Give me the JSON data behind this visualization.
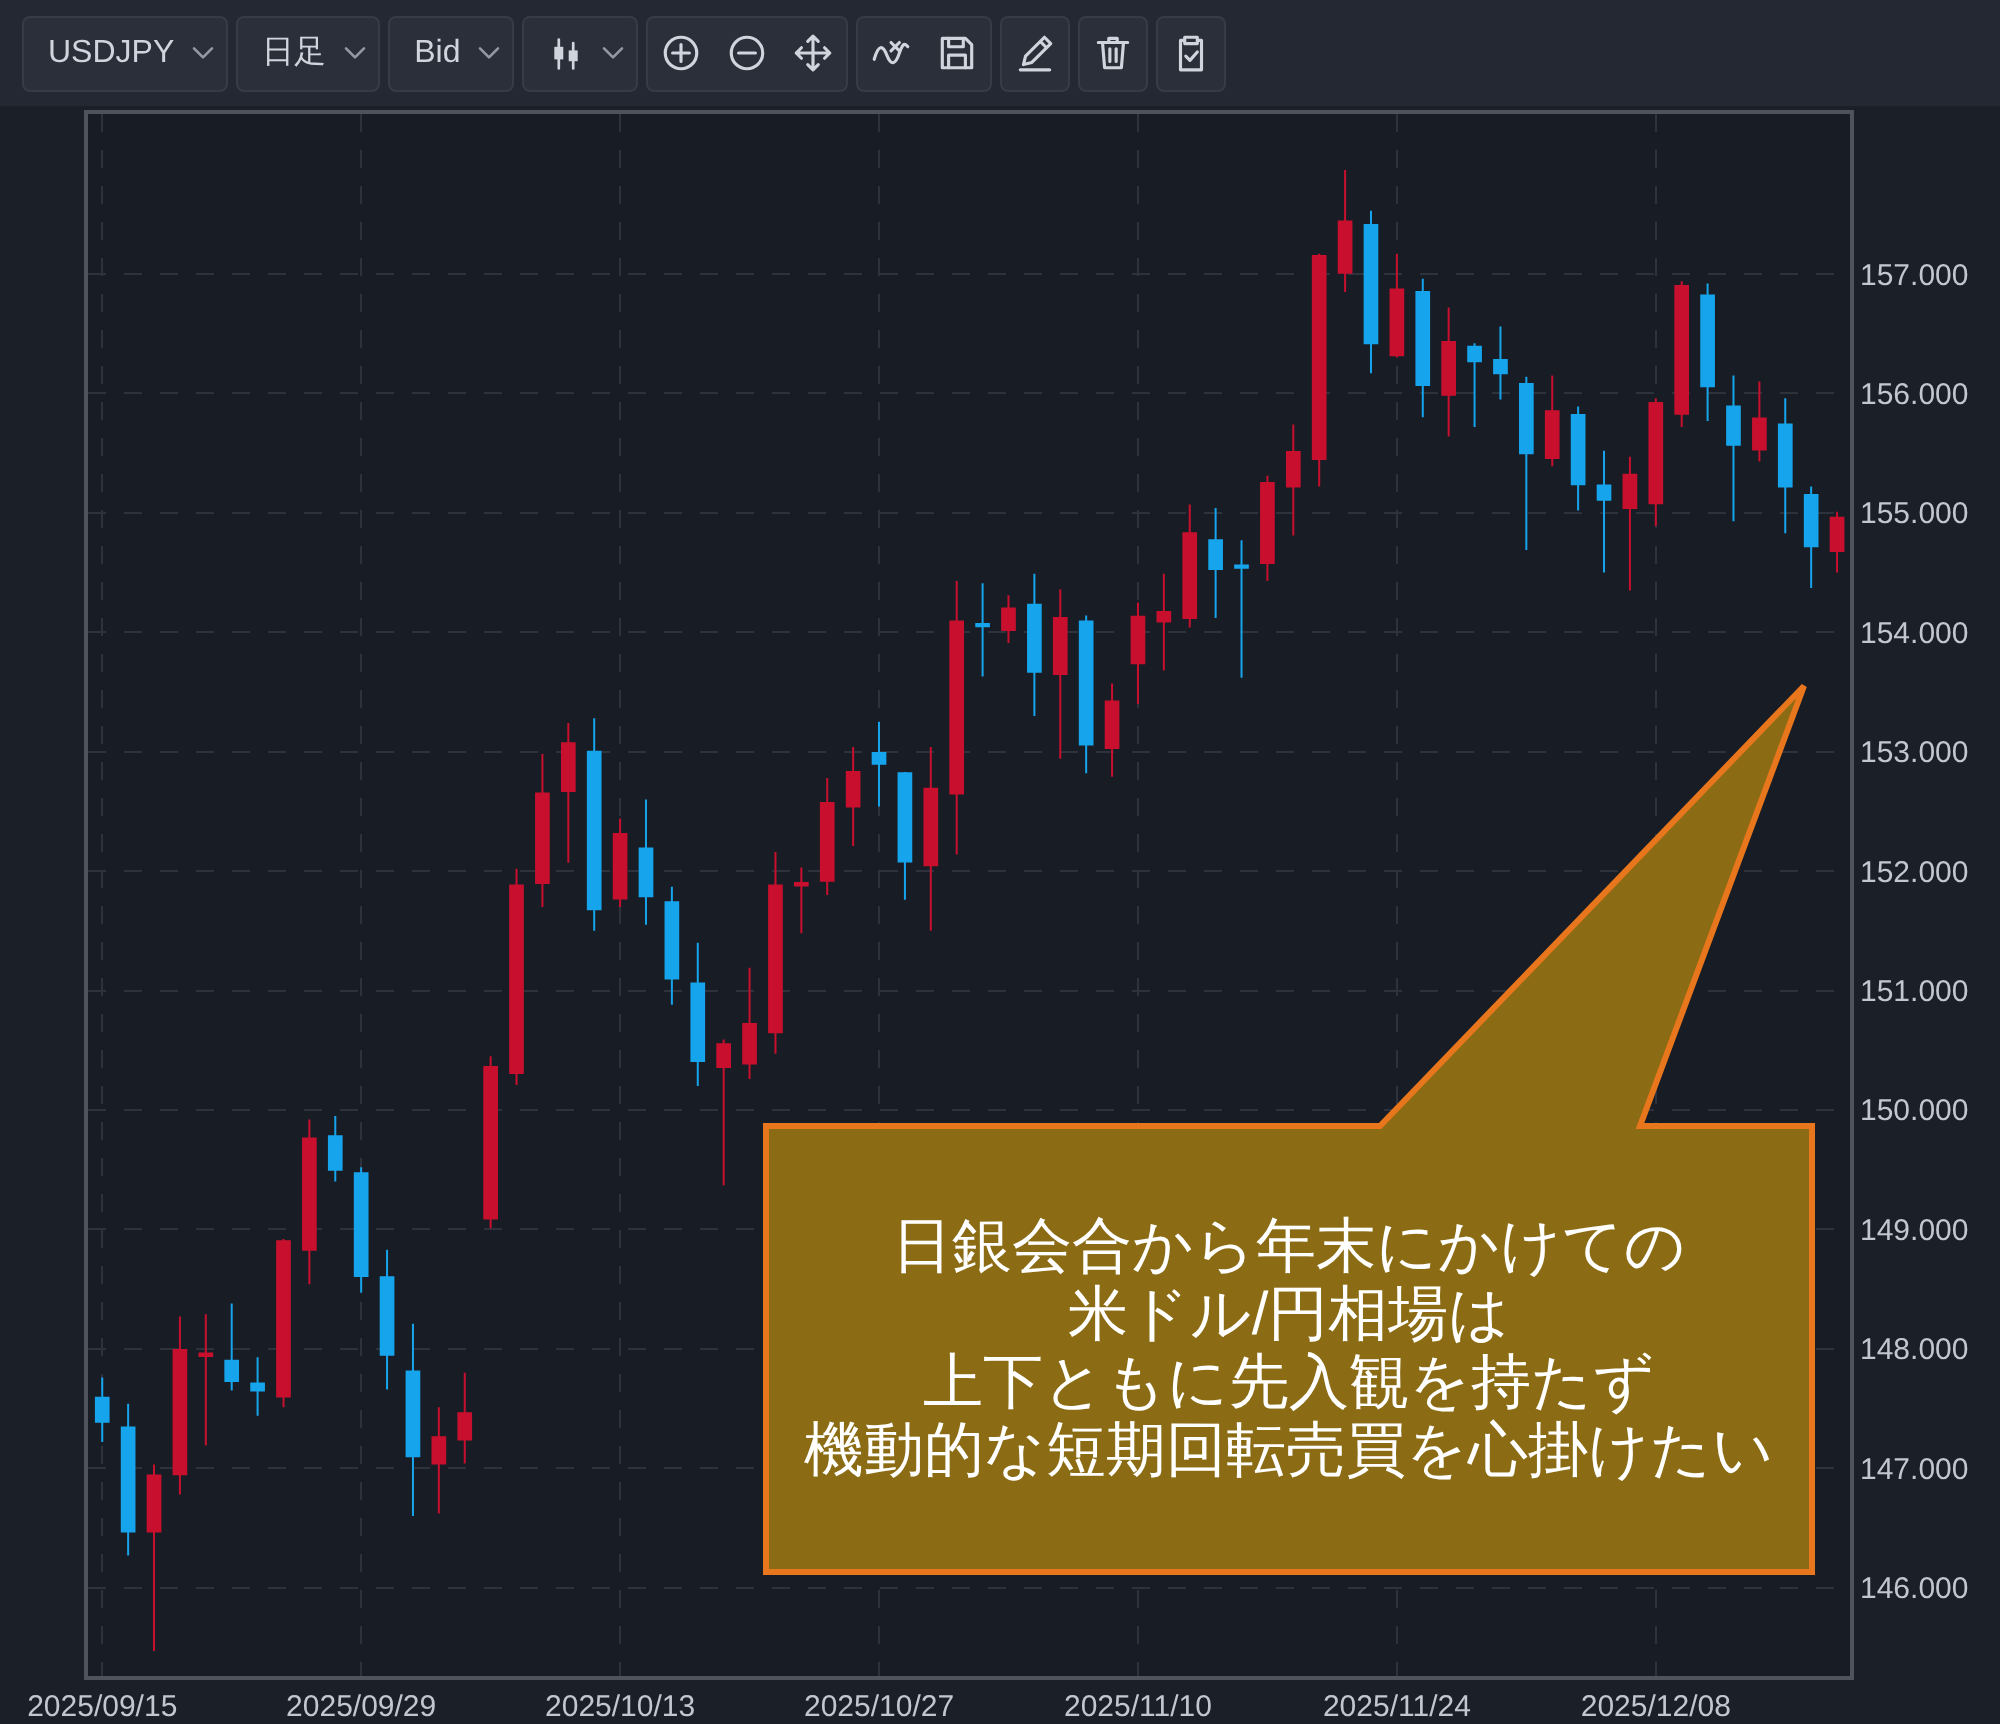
{
  "chart_data": {
    "type": "candlestick",
    "title": "USDJPY",
    "annotations": [
      "日足",
      "Bid",
      "日銀会合から年末にかけての米ドル/円相場は上下ともに先入観を持たず機動的な短期回転売買を心掛けたい"
    ],
    "categories": [
      "2025/09/15",
      null,
      null,
      null,
      null,
      null,
      null,
      null,
      null,
      null,
      "2025/09/29",
      null,
      null,
      null,
      null,
      null,
      null,
      null,
      null,
      null,
      "2025/10/13",
      null,
      null,
      null,
      null,
      null,
      null,
      null,
      null,
      null,
      "2025/10/27",
      null,
      null,
      null,
      null,
      null,
      null,
      null,
      null,
      null,
      "2025/11/10",
      null,
      null,
      null,
      null,
      null,
      null,
      null,
      null,
      null,
      "2025/11/24",
      null,
      null,
      null,
      null,
      null,
      null,
      null,
      null,
      null,
      "2025/12/08",
      null,
      null,
      null,
      null,
      null,
      null,
      null
    ],
    "ohlc": [
      [
        147.59,
        147.76,
        147.22,
        147.39
      ],
      [
        147.34,
        147.54,
        146.27,
        146.47
      ],
      [
        146.47,
        147.03,
        145.47,
        146.94
      ],
      [
        146.95,
        148.27,
        146.78,
        147.99
      ],
      [
        147.94,
        148.29,
        147.19,
        147.96
      ],
      [
        147.9,
        148.38,
        147.65,
        147.73
      ],
      [
        147.71,
        147.93,
        147.44,
        147.65
      ],
      [
        147.6,
        148.92,
        147.51,
        148.9
      ],
      [
        148.83,
        149.92,
        148.54,
        149.76
      ],
      [
        149.78,
        149.95,
        149.4,
        149.5
      ],
      [
        149.47,
        149.52,
        148.47,
        148.61
      ],
      [
        148.6,
        148.83,
        147.66,
        147.95
      ],
      [
        147.81,
        148.21,
        146.6,
        147.1
      ],
      [
        147.04,
        147.51,
        146.62,
        147.26
      ],
      [
        147.24,
        147.8,
        147.04,
        147.46
      ],
      [
        149.09,
        150.45,
        149.01,
        150.36
      ],
      [
        150.31,
        152.02,
        150.21,
        151.88
      ],
      [
        151.9,
        152.98,
        151.7,
        152.65
      ],
      [
        152.67,
        153.24,
        152.07,
        153.07
      ],
      [
        153.0,
        153.28,
        151.5,
        151.68
      ],
      [
        151.77,
        152.44,
        151.7,
        152.31
      ],
      [
        152.19,
        152.6,
        151.55,
        151.79
      ],
      [
        151.74,
        151.87,
        150.88,
        151.1
      ],
      [
        151.06,
        151.4,
        150.2,
        150.41
      ],
      [
        150.36,
        150.59,
        149.37,
        150.55
      ],
      [
        150.39,
        151.19,
        150.26,
        150.72
      ],
      [
        150.65,
        152.16,
        150.47,
        151.88
      ],
      [
        151.88,
        152.03,
        151.48,
        151.9
      ],
      [
        151.92,
        152.78,
        151.8,
        152.57
      ],
      [
        152.54,
        153.04,
        152.21,
        152.83
      ],
      [
        152.99,
        153.25,
        152.54,
        152.9
      ],
      [
        152.82,
        152.83,
        151.76,
        152.08
      ],
      [
        152.05,
        153.04,
        151.5,
        152.69
      ],
      [
        152.65,
        154.43,
        152.14,
        154.09
      ],
      [
        154.07,
        154.41,
        153.63,
        154.05
      ],
      [
        154.02,
        154.31,
        153.91,
        154.2
      ],
      [
        154.23,
        154.49,
        153.3,
        153.67
      ],
      [
        153.65,
        154.36,
        152.94,
        154.12
      ],
      [
        154.09,
        154.14,
        152.82,
        153.06
      ],
      [
        153.03,
        153.57,
        152.79,
        153.42
      ],
      [
        153.74,
        154.25,
        153.4,
        154.13
      ],
      [
        154.09,
        154.49,
        153.68,
        154.17
      ],
      [
        154.12,
        155.07,
        154.04,
        154.83
      ],
      [
        154.77,
        155.04,
        154.12,
        154.53
      ],
      [
        154.56,
        154.77,
        153.62,
        154.54
      ],
      [
        154.58,
        155.31,
        154.43,
        155.25
      ],
      [
        155.22,
        155.74,
        154.81,
        155.51
      ],
      [
        155.45,
        157.17,
        155.22,
        157.15
      ],
      [
        157.01,
        157.87,
        156.85,
        157.44
      ],
      [
        157.41,
        157.53,
        156.17,
        156.42
      ],
      [
        156.32,
        157.17,
        156.3,
        156.87
      ],
      [
        156.85,
        156.96,
        155.8,
        156.07
      ],
      [
        155.99,
        156.72,
        155.64,
        156.43
      ],
      [
        156.39,
        156.42,
        155.72,
        156.27
      ],
      [
        156.28,
        156.56,
        155.95,
        156.17
      ],
      [
        156.08,
        156.14,
        154.69,
        155.5
      ],
      [
        155.46,
        156.15,
        155.39,
        155.85
      ],
      [
        155.82,
        155.89,
        155.02,
        155.24
      ],
      [
        155.23,
        155.52,
        154.5,
        155.11
      ],
      [
        155.04,
        155.47,
        154.35,
        155.32
      ],
      [
        155.08,
        155.96,
        154.89,
        155.92
      ],
      [
        155.83,
        156.94,
        155.72,
        156.9
      ],
      [
        156.82,
        156.92,
        155.77,
        156.06
      ],
      [
        155.89,
        156.15,
        154.93,
        155.57
      ],
      [
        155.53,
        156.1,
        155.43,
        155.79
      ],
      [
        155.74,
        155.96,
        154.83,
        155.22
      ],
      [
        155.15,
        155.22,
        154.37,
        154.72
      ],
      [
        154.68,
        155.01,
        154.5,
        154.96
      ]
    ],
    "colors": [
      "#16a5ec",
      "#16a5ec",
      "#c8102e",
      "#c8102e",
      "#c8102e",
      "#16a5ec",
      "#16a5ec",
      "#c8102e",
      "#c8102e",
      "#16a5ec",
      "#16a5ec",
      "#16a5ec",
      "#16a5ec",
      "#c8102e",
      "#c8102e",
      "#c8102e",
      "#c8102e",
      "#c8102e",
      "#c8102e",
      "#16a5ec",
      "#c8102e",
      "#16a5ec",
      "#16a5ec",
      "#16a5ec",
      "#c8102e",
      "#c8102e",
      "#c8102e",
      "#c8102e",
      "#c8102e",
      "#c8102e",
      "#16a5ec",
      "#16a5ec",
      "#c8102e",
      "#c8102e",
      "#16a5ec",
      "#c8102e",
      "#16a5ec",
      "#c8102e",
      "#16a5ec",
      "#c8102e",
      "#c8102e",
      "#c8102e",
      "#c8102e",
      "#16a5ec",
      "#16a5ec",
      "#c8102e",
      "#c8102e",
      "#c8102e",
      "#c8102e",
      "#16a5ec",
      "#c8102e",
      "#16a5ec",
      "#c8102e",
      "#16a5ec",
      "#16a5ec",
      "#16a5ec",
      "#c8102e",
      "#16a5ec",
      "#16a5ec",
      "#c8102e",
      "#c8102e",
      "#c8102e",
      "#16a5ec",
      "#16a5ec",
      "#c8102e",
      "#16a5ec",
      "#16a5ec",
      "#c8102e"
    ],
    "ylim": [
      145.26,
      158.34
    ],
    "yticks": [
      {
        "value": 146,
        "label": "146.000"
      },
      {
        "value": 147,
        "label": "147.000"
      },
      {
        "value": 148,
        "label": "148.000"
      },
      {
        "value": 149,
        "label": "149.000"
      },
      {
        "value": 150,
        "label": "150.000"
      },
      {
        "value": 151,
        "label": "151.000"
      },
      {
        "value": 152,
        "label": "152.000"
      },
      {
        "value": 153,
        "label": "153.000"
      },
      {
        "value": 154,
        "label": "154.000"
      },
      {
        "value": 155,
        "label": "155.000"
      },
      {
        "value": 156,
        "label": "156.000"
      },
      {
        "value": 157,
        "label": "157.000"
      }
    ],
    "grid": true
  }
}
